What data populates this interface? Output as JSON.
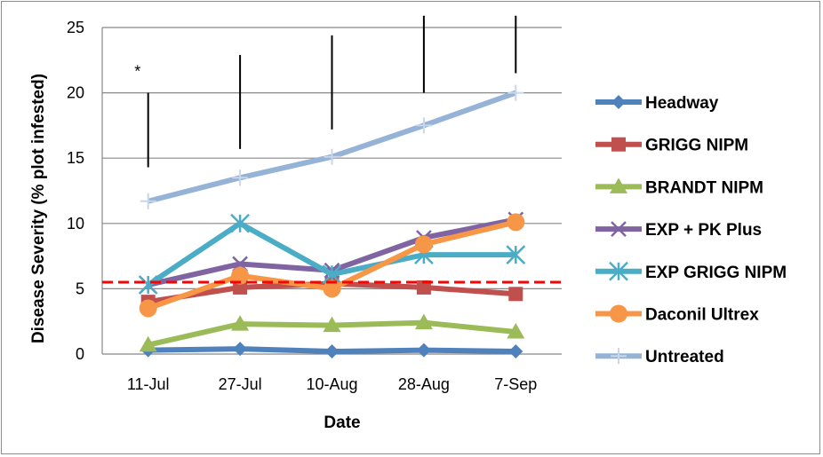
{
  "chart_data": {
    "type": "line",
    "title": "",
    "xlabel": "Date",
    "ylabel": "Disease Severity (% plot infested)",
    "categories": [
      "11-Jul",
      "27-Jul",
      "10-Aug",
      "28-Aug",
      "7-Sep"
    ],
    "ylim": [
      0,
      25
    ],
    "yticks": [
      0,
      5,
      10,
      15,
      20,
      25
    ],
    "grid": true,
    "legend_position": "right",
    "series": [
      {
        "name": "Headway",
        "values": [
          0.3,
          0.4,
          0.2,
          0.3,
          0.2
        ],
        "color": "#4f81bd",
        "marker": "diamond"
      },
      {
        "name": "GRIGG NIPM",
        "values": [
          4.0,
          5.1,
          5.4,
          5.1,
          4.6
        ],
        "color": "#c0504d",
        "marker": "square"
      },
      {
        "name": "BRANDT NIPM",
        "values": [
          0.7,
          2.3,
          2.2,
          2.4,
          1.7
        ],
        "color": "#9bbb59",
        "marker": "triangle"
      },
      {
        "name": "EXP + PK Plus",
        "values": [
          5.3,
          6.9,
          6.4,
          8.9,
          10.3
        ],
        "color": "#8064a2",
        "marker": "x"
      },
      {
        "name": "EXP GRIGG NIPM",
        "values": [
          5.3,
          10.0,
          6.1,
          7.6,
          7.6
        ],
        "color": "#4bacc6",
        "marker": "star"
      },
      {
        "name": "Daconil Ultrex",
        "values": [
          3.5,
          6.0,
          5.0,
          8.4,
          10.1
        ],
        "color": "#f79646",
        "marker": "circle"
      },
      {
        "name": "Untreated",
        "values": [
          11.7,
          13.5,
          15.1,
          17.5,
          20.0
        ],
        "color": "#95b3d7",
        "marker": "plus"
      }
    ],
    "reference_line": {
      "value": 5.5,
      "color": "#ff0000",
      "style": "dashed"
    },
    "error_bars": [
      {
        "category": "11-Jul",
        "low": 14.3,
        "high": 20.0
      },
      {
        "category": "27-Jul",
        "low": 15.7,
        "high": 22.9
      },
      {
        "category": "10-Aug",
        "low": 17.2,
        "high": 24.4
      },
      {
        "category": "28-Aug",
        "low": 20.0,
        "high": 25.9
      },
      {
        "category": "7-Sep",
        "low": 21.5,
        "high": 25.9
      }
    ],
    "annotations": [
      {
        "text": "*",
        "category": "11-Jul",
        "value": 21.5
      }
    ]
  }
}
